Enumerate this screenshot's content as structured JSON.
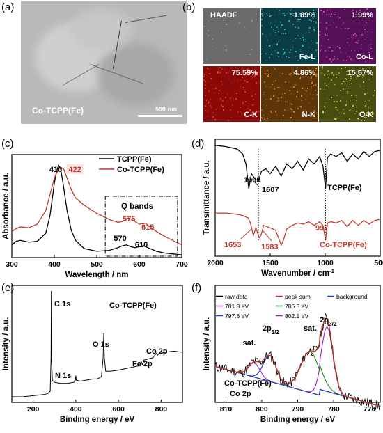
{
  "panel_letters": [
    "(a)",
    "(b)",
    "(c)",
    "(d)",
    "(e)",
    "(f)"
  ],
  "tem": {
    "label": "Co-TCPP(Fe)",
    "scale": "500 nm"
  },
  "eds_maps": [
    {
      "element": "HAADF",
      "percent": "",
      "color": "#6b6b6b",
      "dot": "#9a9a9a"
    },
    {
      "element": "Fe-L",
      "percent": "1.89%",
      "color": "#0a3e44",
      "dot": "#2fb8c4"
    },
    {
      "element": "Co-L",
      "percent": "1.99%",
      "color": "#551155",
      "dot": "#d23fd2"
    },
    {
      "element": "C-K",
      "percent": "75.59%",
      "color": "#8a0a0a",
      "dot": "#f03a2a"
    },
    {
      "element": "N-K",
      "percent": "4.86%",
      "color": "#5c3508",
      "dot": "#d98420"
    },
    {
      "element": "O-K",
      "percent": "15.67%",
      "color": "#484c10",
      "dot": "#c7cf3a"
    }
  ],
  "chart_data": [
    {
      "panel": "(c)",
      "type": "line",
      "xlabel": "Wavelength / nm",
      "ylabel": "Absorbance / a.u.",
      "xlim": [
        300,
        700
      ],
      "xticks": [
        300,
        400,
        500,
        600,
        700
      ],
      "legend": "top-right",
      "series": [
        {
          "name": "TCPP(Fe)",
          "color": "#000000",
          "x": [
            300,
            310,
            320,
            340,
            360,
            380,
            390,
            400,
            405,
            410,
            415,
            420,
            430,
            440,
            450,
            470,
            500,
            530,
            550,
            560,
            570,
            580,
            590,
            600,
            610,
            620,
            640,
            660,
            680,
            700
          ],
          "y": [
            0.12,
            0.16,
            0.17,
            0.15,
            0.16,
            0.25,
            0.45,
            0.8,
            0.93,
            1.0,
            0.96,
            0.82,
            0.5,
            0.28,
            0.17,
            0.08,
            0.05,
            0.06,
            0.09,
            0.11,
            0.12,
            0.1,
            0.09,
            0.1,
            0.11,
            0.09,
            0.05,
            0.03,
            0.02,
            0.01
          ]
        },
        {
          "name": "Co-TCPP(Fe)",
          "color": "#c0392b",
          "x": [
            300,
            310,
            320,
            340,
            360,
            380,
            390,
            400,
            410,
            415,
            422,
            430,
            440,
            450,
            470,
            500,
            530,
            550,
            560,
            575,
            590,
            600,
            615,
            630,
            650,
            670,
            700
          ],
          "y": [
            0.27,
            0.3,
            0.32,
            0.31,
            0.35,
            0.5,
            0.68,
            0.86,
            0.96,
            0.98,
            0.96,
            0.86,
            0.73,
            0.64,
            0.56,
            0.47,
            0.4,
            0.37,
            0.38,
            0.42,
            0.38,
            0.35,
            0.36,
            0.3,
            0.24,
            0.19,
            0.12
          ]
        }
      ],
      "annotations": [
        {
          "text": "410",
          "color": "#000000"
        },
        {
          "text": "422",
          "color": "#c0392b"
        },
        {
          "text": "575",
          "color": "#c0392b"
        },
        {
          "text": "615",
          "color": "#c0392b"
        },
        {
          "text": "570",
          "color": "#000000"
        },
        {
          "text": "610",
          "color": "#000000"
        },
        {
          "text": "Q bands",
          "color": "#000000"
        }
      ]
    },
    {
      "panel": "(d)",
      "type": "line",
      "xlabel": "Wavenumber / cm",
      "xlabel_sup": "-1",
      "ylabel": "Transmittance / a.u.",
      "xlim": [
        2000,
        500
      ],
      "xticks": [
        2000,
        1500,
        1000,
        500
      ],
      "series": [
        {
          "name": "TCPP(Fe)",
          "color": "#000000",
          "x": [
            2000,
            1900,
            1800,
            1750,
            1720,
            1695,
            1670,
            1640,
            1607,
            1580,
            1540,
            1500,
            1450,
            1400,
            1350,
            1300,
            1250,
            1200,
            1150,
            1100,
            1050,
            1020,
            997,
            980,
            950,
            900,
            850,
            800,
            750,
            700,
            650,
            600,
            550,
            500
          ],
          "y": [
            0.95,
            0.94,
            0.92,
            0.88,
            0.8,
            0.6,
            0.72,
            0.68,
            0.66,
            0.74,
            0.76,
            0.72,
            0.78,
            0.7,
            0.8,
            0.76,
            0.82,
            0.75,
            0.84,
            0.8,
            0.86,
            0.78,
            0.6,
            0.85,
            0.88,
            0.86,
            0.89,
            0.82,
            0.88,
            0.84,
            0.9,
            0.86,
            0.9,
            0.91
          ]
        },
        {
          "name": "Co-TCPP(Fe)",
          "color": "#c0392b",
          "x": [
            2000,
            1900,
            1800,
            1750,
            1700,
            1680,
            1653,
            1630,
            1600,
            1583,
            1560,
            1500,
            1450,
            1400,
            1380,
            1350,
            1300,
            1250,
            1200,
            1150,
            1100,
            1050,
            1020,
            997,
            980,
            950,
            900,
            850,
            800,
            750,
            700,
            650,
            600,
            550,
            500
          ],
          "y": [
            0.4,
            0.4,
            0.39,
            0.38,
            0.36,
            0.32,
            0.22,
            0.28,
            0.2,
            0.22,
            0.3,
            0.28,
            0.26,
            0.14,
            0.18,
            0.27,
            0.3,
            0.32,
            0.31,
            0.33,
            0.3,
            0.33,
            0.3,
            0.18,
            0.32,
            0.33,
            0.32,
            0.34,
            0.29,
            0.34,
            0.3,
            0.34,
            0.31,
            0.34,
            0.35
          ]
        }
      ],
      "annotations": [
        {
          "text": "1695",
          "color": "#000000"
        },
        {
          "text": "1607",
          "color": "#000000"
        },
        {
          "text": "TCPP(Fe)",
          "color": "#000000"
        },
        {
          "text": "997",
          "color": "#c0392b"
        },
        {
          "text": "1653",
          "color": "#c0392b"
        },
        {
          "text": "1583",
          "color": "#c0392b"
        },
        {
          "text": "Co-TCPP(Fe)",
          "color": "#c0392b"
        }
      ]
    },
    {
      "panel": "(e)",
      "type": "line",
      "xlabel": "Binding energy / eV",
      "ylabel": "Intensity / a.u.",
      "xlim": [
        100,
        900
      ],
      "xticks": [
        200,
        400,
        600,
        800
      ],
      "series": [
        {
          "name": "Co-TCPP(Fe)",
          "color": "#000000",
          "x": [
            100,
            150,
            200,
            250,
            270,
            280,
            284,
            285,
            286,
            290,
            300,
            330,
            360,
            390,
            398,
            400,
            402,
            420,
            450,
            480,
            500,
            520,
            528,
            531,
            534,
            540,
            560,
            600,
            650,
            700,
            708,
            712,
            720,
            760,
            778,
            782,
            790,
            820,
            860,
            900
          ],
          "y": [
            0.05,
            0.05,
            0.06,
            0.07,
            0.08,
            0.1,
            0.4,
            1.0,
            0.4,
            0.2,
            0.18,
            0.17,
            0.17,
            0.18,
            0.2,
            0.24,
            0.2,
            0.19,
            0.2,
            0.21,
            0.21,
            0.23,
            0.4,
            0.62,
            0.4,
            0.28,
            0.28,
            0.29,
            0.31,
            0.33,
            0.36,
            0.34,
            0.38,
            0.4,
            0.44,
            0.42,
            0.44,
            0.45,
            0.46,
            0.45
          ]
        }
      ],
      "annotations": [
        {
          "text": "C 1s"
        },
        {
          "text": "Co-TCPP(Fe)"
        },
        {
          "text": "O 1s"
        },
        {
          "text": "N 1s"
        },
        {
          "text": "Fe 2p"
        },
        {
          "text": "Co 2p"
        }
      ]
    },
    {
      "panel": "(f)",
      "type": "line",
      "xlabel": "Binding energy / eV",
      "ylabel": "Intensity / a.u.",
      "xlim": [
        813,
        767
      ],
      "xticks": [
        810,
        800,
        790,
        780,
        770
      ],
      "legend": "top",
      "series": [
        {
          "name": "raw data",
          "color": "#000000"
        },
        {
          "name": "peak sum",
          "color": "#c0392b"
        },
        {
          "name": "background",
          "color": "#1f3fbf"
        },
        {
          "name": "781.8 eV",
          "color": "#a020c0",
          "center": 781.8,
          "height": 0.55,
          "width": 1.6
        },
        {
          "name": "786.5 eV",
          "color": "#1a8a1a",
          "center": 786.5,
          "height": 0.35,
          "width": 2.6
        },
        {
          "name": "797.8 eV",
          "color": "#1f3fbf",
          "center": 797.8,
          "height": 0.22,
          "width": 1.8
        },
        {
          "name": "802.1 eV",
          "color": "#a020c0",
          "center": 802.1,
          "height": 0.12,
          "width": 1.6
        }
      ],
      "annotations": [
        {
          "text": "sat."
        },
        {
          "text": "2p",
          "sub": "1/2"
        },
        {
          "text": "sat."
        },
        {
          "text": "2p",
          "sub": "3/2"
        },
        {
          "text": "Co-TCPP(Fe)"
        },
        {
          "text": "Co 2p"
        }
      ]
    }
  ]
}
